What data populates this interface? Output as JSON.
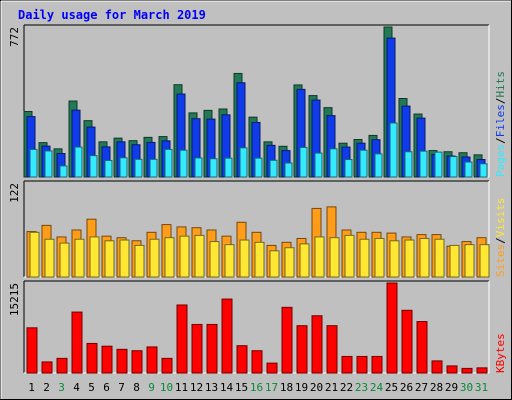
{
  "chart_data": {
    "type": "bar",
    "title": "Daily usage for March 2019",
    "categories": [
      "1",
      "2",
      "3",
      "4",
      "5",
      "6",
      "7",
      "8",
      "9",
      "10",
      "11",
      "12",
      "13",
      "14",
      "15",
      "16",
      "17",
      "18",
      "19",
      "20",
      "21",
      "22",
      "23",
      "24",
      "25",
      "26",
      "27",
      "28",
      "29",
      "30",
      "31"
    ],
    "weekend_days": [
      "3",
      "9",
      "10",
      "16",
      "17",
      "23",
      "24",
      "30",
      "31"
    ],
    "colors": {
      "frame": "#c0c0c0",
      "plot_bg": "#c0c0c0",
      "hits": "#217a55",
      "files": "#0f3bea",
      "pages": "#33eaff",
      "visits": "#ffe733",
      "sites": "#ff9d1a",
      "kbytes": "#ff0000",
      "title_text": "#0000ff",
      "weekday_label": "#000000",
      "weekend_label": "#0a8a3a"
    },
    "panels": [
      {
        "id": "hits-files-pages",
        "ymax": 772,
        "tick_label": "772",
        "legend": [
          "Pages",
          "Files",
          "Hits"
        ],
        "series": [
          {
            "name": "Hits",
            "values": [
              337,
              177,
              145,
              391,
              290,
              181,
              200,
              187,
              204,
              208,
              475,
              330,
              343,
              350,
              533,
              308,
              181,
              158,
              474,
              419,
              357,
              174,
              193,
              214,
              772,
              404,
              324,
              136,
              130,
              125,
              114
            ]
          },
          {
            "name": "Files",
            "values": [
              311,
              159,
              121,
              344,
              257,
              155,
              181,
              166,
              178,
              186,
              427,
              300,
              298,
              320,
              485,
              281,
              163,
              136,
              451,
              396,
              316,
              154,
              174,
              192,
              715,
              365,
              303,
              116,
              108,
              103,
              90
            ]
          },
          {
            "name": "Pages",
            "values": [
              142,
              134,
              57,
              154,
              110,
              85,
              99,
              91,
              91,
              142,
              138,
              98,
              94,
              97,
              150,
              97,
              86,
              72,
              152,
              123,
              145,
              90,
              138,
              119,
              278,
              130,
              133,
              128,
              105,
              77,
              68
            ]
          }
        ]
      },
      {
        "id": "visits-sites",
        "ymax": 122,
        "tick_label": "122",
        "legend": [
          "Sites",
          "Visits"
        ],
        "series": [
          {
            "name": "Sites",
            "values": [
              59,
              67,
              52,
              61,
              75,
              53,
              51,
              47,
              58,
              68,
              65,
              64,
              61,
              53,
              71,
              58,
              41,
              45,
              50,
              89,
              91,
              61,
              58,
              58,
              57,
              52,
              55,
              55,
              40,
              46,
              51
            ]
          },
          {
            "name": "Visits",
            "values": [
              58,
              49,
              44,
              49,
              52,
              47,
              48,
              41,
              49,
              51,
              53,
              54,
              46,
              42,
              48,
              45,
              34,
              38,
              43,
              52,
              51,
              54,
              49,
              50,
              47,
              48,
              50,
              49,
              41,
              42,
              42
            ]
          }
        ]
      },
      {
        "id": "kbytes",
        "ymax": 15215,
        "tick_label": "15215",
        "legend": [
          "KBytes"
        ],
        "series": [
          {
            "name": "KBytes",
            "values": [
              7640,
              1870,
              2475,
              10300,
              5000,
              4530,
              4000,
              3770,
              4410,
              2475,
              11500,
              8210,
              8210,
              12500,
              4620,
              3770,
              1670,
              11100,
              8000,
              9680,
              8000,
              2800,
              2800,
              2800,
              15215,
              10600,
              8700,
              2050,
              1200,
              780,
              870
            ]
          }
        ]
      }
    ]
  }
}
